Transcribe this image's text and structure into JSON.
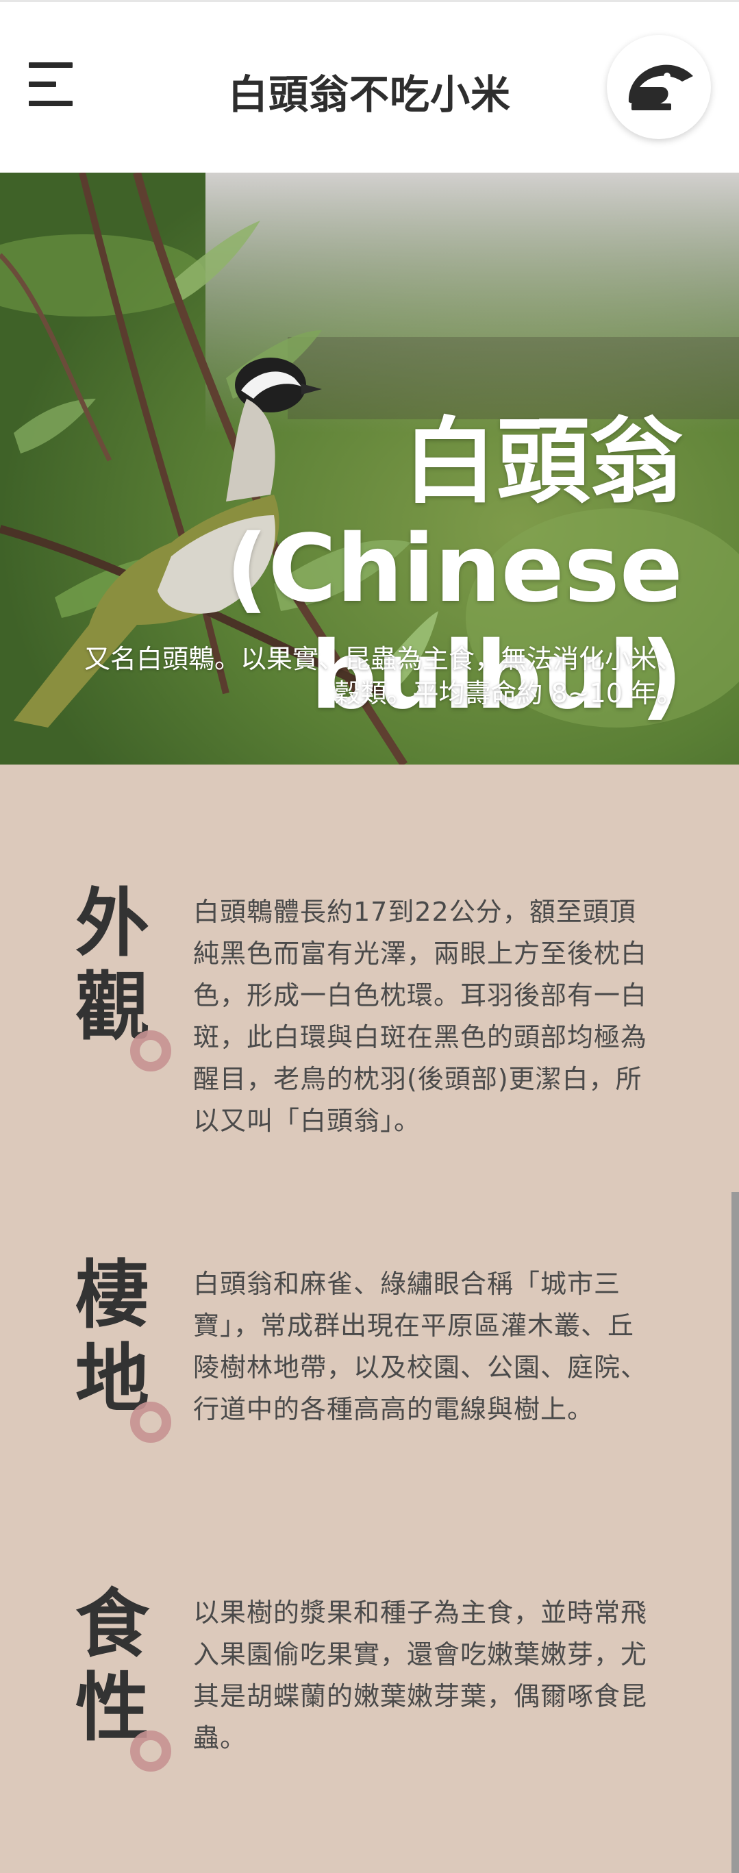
{
  "header": {
    "title": "白頭翁不吃小米",
    "menu_icon": "hamburger-menu-icon",
    "logo_icon": "bird-logo-icon"
  },
  "hero": {
    "title": "白頭翁(Chinese bulbul)",
    "subtitle": "又名白頭鵯。以果實、昆蟲為主食，無法消化小米、穀類。平均壽命約 8~10 年。"
  },
  "sections": [
    {
      "heading_line1": "外",
      "heading_line2": "觀",
      "body": "白頭鵯體長約17到22公分，額至頭頂純黑色而富有光澤，兩眼上方至後枕白色，形成一白色枕環。耳羽後部有一白斑，此白環與白斑在黑色的頭部均極為醒目，老鳥的枕羽(後頭部)更潔白，所以又叫「白頭翁」。"
    },
    {
      "heading_line1": "棲",
      "heading_line2": "地",
      "body": "白頭翁和麻雀、綠繡眼合稱「城市三寶」，常成群出現在平原區灌木叢、丘陵樹林地帶，以及校園、公園、庭院、行道中的各種高高的電線與樹上。"
    },
    {
      "heading_line1": "食",
      "heading_line2": "性",
      "body": "以果樹的漿果和種子為主食，並時常飛入果園偷吃果實，還會吃嫩葉嫩芽，尤其是胡蝶蘭的嫩葉嫩芽葉，偶爾啄食昆蟲。"
    }
  ],
  "colors": {
    "background": "#dcc9bb",
    "accent_ring": "#c79292",
    "heading": "#333333"
  }
}
